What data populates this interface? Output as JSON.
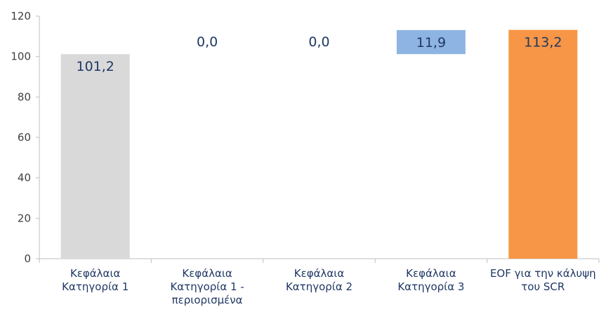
{
  "chart_data": {
    "type": "bar",
    "variant": "waterfall",
    "categories": [
      [
        "Κεφάλαια",
        "Κατηγορία 1"
      ],
      [
        "Κεφάλαια",
        "Κατηγορία 1 -",
        "περιορισμένα"
      ],
      [
        "Κεφάλαια",
        "Κατηγορία 2"
      ],
      [
        "Κεφάλαια",
        "Κατηγορία 3"
      ],
      [
        "EOF για την κάλυψη",
        "του SCR"
      ]
    ],
    "values": [
      101.2,
      0.0,
      0.0,
      11.9,
      113.2
    ],
    "bases": [
      0,
      101.2,
      101.2,
      101.2,
      0
    ],
    "labels": [
      "101,2",
      "0,0",
      "0,0",
      "11,9",
      "113,2"
    ],
    "colors": [
      "#d9d9d9",
      "#d9d9d9",
      "#d9d9d9",
      "#8eb4e3",
      "#f79646"
    ],
    "y_ticks": [
      "0",
      "20",
      "40",
      "60",
      "80",
      "100",
      "120"
    ],
    "ylim": [
      0,
      120
    ],
    "grid": false,
    "legend": "none",
    "title": "",
    "xlabel": "",
    "ylabel": ""
  }
}
